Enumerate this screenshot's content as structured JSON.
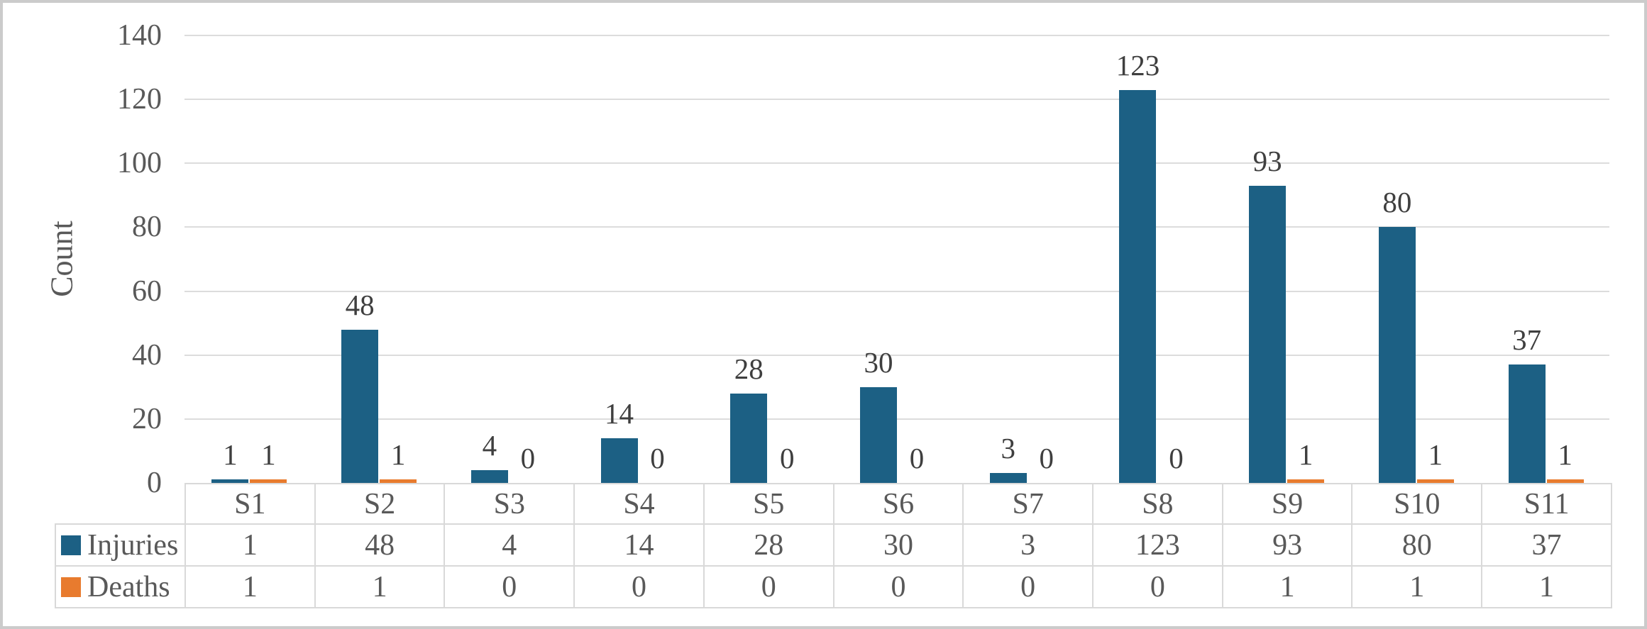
{
  "chart_data": {
    "type": "bar",
    "title": "",
    "xlabel": "",
    "ylabel": "Count",
    "categories": [
      "S1",
      "S2",
      "S3",
      "S4",
      "S5",
      "S6",
      "S7",
      "S8",
      "S9",
      "S10",
      "S11"
    ],
    "series": [
      {
        "name": "Injuries",
        "color": "#1c6084",
        "values": [
          1,
          48,
          4,
          14,
          28,
          30,
          3,
          123,
          93,
          80,
          37
        ]
      },
      {
        "name": "Deaths",
        "color": "#e87b2e",
        "values": [
          1,
          1,
          0,
          0,
          0,
          0,
          0,
          0,
          1,
          1,
          1
        ]
      }
    ],
    "ylim": [
      0,
      140
    ],
    "yticks": [
      0,
      20,
      40,
      60,
      80,
      100,
      120,
      140
    ],
    "grid": "horizontal",
    "gridline_color": "#dcdcdc",
    "axis_text_color": "#595959",
    "data_label_color": "#3f3f3f",
    "data_labels": "outside-end",
    "legend_position": "data-table-left",
    "data_table_shown": true,
    "outer_border_color": "#cbcbcb"
  }
}
